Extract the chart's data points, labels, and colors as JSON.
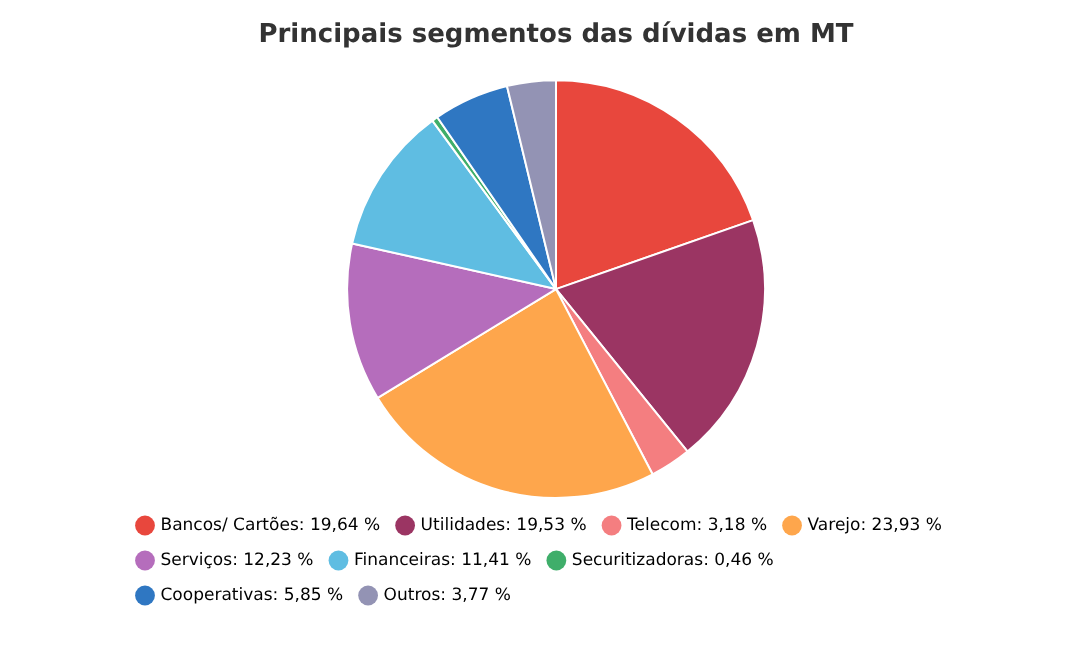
{
  "chart_data": {
    "type": "pie",
    "title": "Principais segmentos das dívidas em MT",
    "categories": [
      "Bancos/ Cartões",
      "Utilidades",
      "Telecom",
      "Varejo",
      "Serviços",
      "Financeiras",
      "Securitizadoras",
      "Cooperativas",
      "Outros"
    ],
    "values": [
      19.64,
      19.53,
      3.18,
      23.93,
      12.23,
      11.41,
      0.46,
      5.85,
      3.77
    ],
    "value_labels": [
      "19,64 %",
      "19,53 %",
      "3,18 %",
      "23,93 %",
      "12,23 %",
      "11,41 %",
      "0,46 %",
      "5,85 %",
      "3,77 %"
    ],
    "colors": [
      "#e8473d",
      "#9b3563",
      "#f47e80",
      "#fea64c",
      "#b56dbc",
      "#5fbde2",
      "#3fae6a",
      "#2f77c2",
      "#9393b4"
    ],
    "legend": "bottom"
  }
}
